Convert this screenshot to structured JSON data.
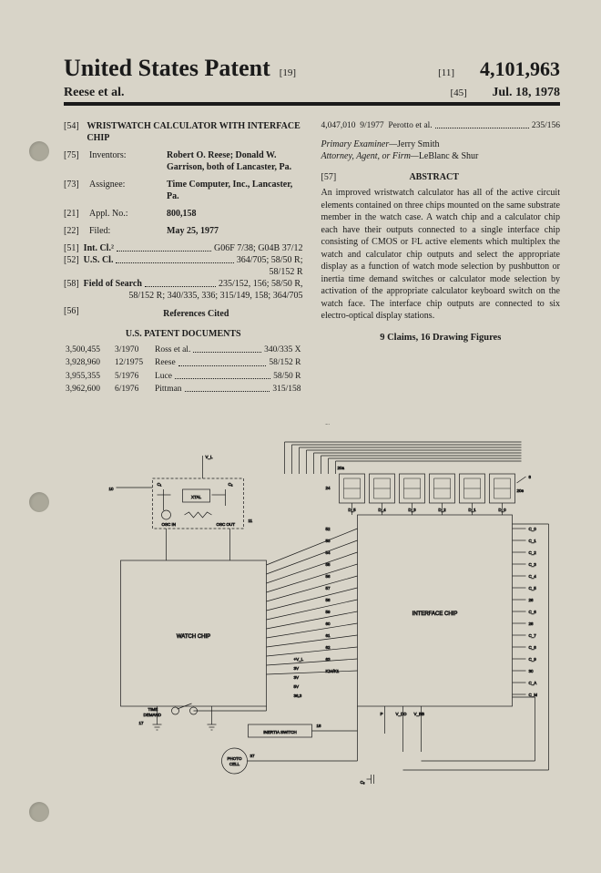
{
  "header": {
    "title": "United States Patent",
    "code1": "[19]",
    "code2": "[11]",
    "code3": "[45]",
    "patent_number": "4,101,963",
    "inventor_line": "Reese et al.",
    "date": "Jul. 18, 1978"
  },
  "left": {
    "title_code": "[54]",
    "title": "WRISTWATCH CALCULATOR WITH INTERFACE CHIP",
    "inv_code": "[75]",
    "inv_label": "Inventors:",
    "inv_val": "Robert O. Reese; Donald W. Garrison, both of Lancaster, Pa.",
    "asn_code": "[73]",
    "asn_label": "Assignee:",
    "asn_val": "Time Computer, Inc., Lancaster, Pa.",
    "app_code": "[21]",
    "app_label": "Appl. No.:",
    "app_val": "800,158",
    "file_code": "[22]",
    "file_label": "Filed:",
    "file_val": "May 25, 1977",
    "intcl_code": "[51]",
    "intcl_label": "Int. Cl.²",
    "intcl_val": "G06F 7/38; G04B 37/12",
    "uscl_code": "[52]",
    "uscl_label": "U.S. Cl.",
    "uscl_val": "364/705; 58/50 R;",
    "uscl_val2": "58/152 R",
    "fos_code": "[58]",
    "fos_label": "Field of Search",
    "fos_val": "235/152, 156; 58/50 R,",
    "fos_val2": "58/152 R; 340/335, 336; 315/149, 158; 364/705",
    "refs_code": "[56]",
    "refs_label": "References Cited",
    "refs_head": "U.S. PATENT DOCUMENTS",
    "refs": [
      {
        "num": "3,500,455",
        "date": "3/1970",
        "name": "Ross et al.",
        "cls": "340/335 X"
      },
      {
        "num": "3,928,960",
        "date": "12/1975",
        "name": "Reese",
        "cls": "58/152 R"
      },
      {
        "num": "3,955,355",
        "date": "5/1976",
        "name": "Luce",
        "cls": "58/50 R"
      },
      {
        "num": "3,962,600",
        "date": "6/1976",
        "name": "Pittman",
        "cls": "315/158"
      }
    ]
  },
  "right": {
    "ref_extra": {
      "num": "4,047,010",
      "date": "9/1977",
      "name": "Perotto et al.",
      "cls": "235/156"
    },
    "examiner_label": "Primary Examiner—",
    "examiner": "Jerry Smith",
    "attorney_label": "Attorney, Agent, or Firm—",
    "attorney": "LeBlanc & Shur",
    "abstract_code": "[57]",
    "abstract_head": "ABSTRACT",
    "abstract": "An improved wristwatch calculator has all of the active circuit elements contained on three chips mounted on the same substrate member in the watch case. A watch chip and a calculator chip each have their outputs connected to a single interface chip consisting of CMOS or I²L active elements which multiplex the watch and calculator chip outputs and select the appropriate display as a function of watch mode selection by pushbutton or inertia time demand switches or calculator mode selection by activation of the appropriate calculator keyboard switch on the watch face. The interface chip outputs are connected to six electro-optical display stations.",
    "claims": "9 Claims, 16 Drawing Figures"
  },
  "figure": {
    "watch_chip": "WATCH CHIP",
    "interface_chip": "INTERFACE CHIP",
    "xtal": "XTAL",
    "osc_in": "OSC IN",
    "osc_out": "OSC OUT",
    "time_demand": "TIME\nDEMAND",
    "inertia": "INERTIA SWITCH",
    "photo_cell": "PHOTO\nCELL",
    "pins_left": [
      "V_L",
      "10",
      "C_1",
      "C_2",
      "11"
    ],
    "pins_right": [
      "8",
      "20e",
      "C_0",
      "C_1",
      "C_2",
      "C_3",
      "C_4",
      "C_5",
      "26",
      "C_6",
      "28",
      "C_7",
      "C_8",
      "C_9",
      "30",
      "C_A",
      "C_M"
    ],
    "disp": [
      "DP",
      "24",
      "20a",
      "D_5",
      "D_4",
      "D_3",
      "D_2",
      "D_1",
      "D_0"
    ],
    "signals": [
      "52",
      "53",
      "54",
      "55",
      "56",
      "57",
      "58",
      "59",
      "60",
      "61",
      "62",
      "63",
      "K24/K1",
      "44",
      "43",
      "42",
      "41",
      "40",
      "+V_L",
      "3V",
      "3V",
      "5V",
      "36,3"
    ],
    "bottom": [
      "P",
      "V_DD",
      "V_BB",
      "C_5"
    ],
    "nums": [
      "13",
      "14",
      "15",
      "16",
      "17",
      "18",
      "37",
      "38",
      "39",
      "33"
    ]
  }
}
